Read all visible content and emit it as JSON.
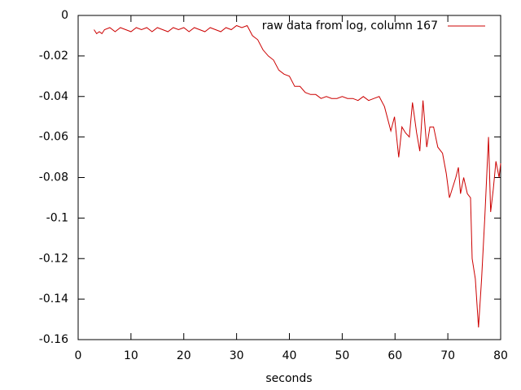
{
  "chart_data": {
    "type": "line",
    "xlabel": "seconds",
    "x": [
      3,
      3.5,
      4,
      4.5,
      5,
      6,
      7,
      8,
      9,
      10,
      11,
      12,
      13,
      14,
      15,
      16,
      17,
      18,
      19,
      20,
      21,
      22,
      23,
      24,
      25,
      26,
      27,
      28,
      29,
      30,
      31,
      32,
      33,
      34,
      35,
      36,
      37,
      38,
      39,
      40,
      41,
      42,
      43,
      44,
      45,
      46,
      47,
      48,
      49,
      50,
      51,
      52,
      53,
      54,
      55,
      56,
      57,
      58,
      59.2,
      59.9,
      60.7,
      61.3,
      62,
      62.7,
      63.3,
      64.1,
      64.7,
      65.3,
      66,
      66.6,
      67.3,
      68.1,
      69,
      69.7,
      70.3,
      71.5,
      72,
      72.4,
      73,
      73.7,
      74.3,
      74.6,
      75.2,
      75.8,
      76.4,
      77,
      77.7,
      78.1,
      78.6,
      79.1,
      79.7,
      80
    ],
    "series": [
      {
        "name": "raw data from log, column 167",
        "color": "#cc0000",
        "values": [
          -0.007,
          -0.009,
          -0.008,
          -0.009,
          -0.007,
          -0.006,
          -0.008,
          -0.006,
          -0.007,
          -0.008,
          -0.006,
          -0.007,
          -0.006,
          -0.008,
          -0.006,
          -0.007,
          -0.008,
          -0.006,
          -0.007,
          -0.006,
          -0.008,
          -0.006,
          -0.007,
          -0.008,
          -0.006,
          -0.007,
          -0.008,
          -0.006,
          -0.007,
          -0.005,
          -0.006,
          -0.005,
          -0.01,
          -0.012,
          -0.017,
          -0.02,
          -0.022,
          -0.027,
          -0.029,
          -0.03,
          -0.035,
          -0.035,
          -0.038,
          -0.039,
          -0.039,
          -0.041,
          -0.04,
          -0.041,
          -0.041,
          -0.04,
          -0.041,
          -0.041,
          -0.042,
          -0.04,
          -0.042,
          -0.041,
          -0.04,
          -0.045,
          -0.057,
          -0.05,
          -0.07,
          -0.055,
          -0.058,
          -0.06,
          -0.043,
          -0.058,
          -0.067,
          -0.042,
          -0.065,
          -0.055,
          -0.055,
          -0.065,
          -0.068,
          -0.078,
          -0.09,
          -0.08,
          -0.075,
          -0.088,
          -0.08,
          -0.088,
          -0.09,
          -0.12,
          -0.13,
          -0.154,
          -0.13,
          -0.1,
          -0.06,
          -0.097,
          -0.086,
          -0.072,
          -0.08,
          -0.073
        ]
      }
    ],
    "xlim": [
      0,
      80
    ],
    "xticks": [
      0,
      10,
      20,
      30,
      40,
      50,
      60,
      70,
      80
    ],
    "ylim": [
      -0.16,
      0
    ],
    "yticks": [
      0,
      -0.02,
      -0.04,
      -0.06,
      -0.08,
      -0.1,
      -0.12,
      -0.14,
      -0.16
    ],
    "legend": "top-right"
  }
}
